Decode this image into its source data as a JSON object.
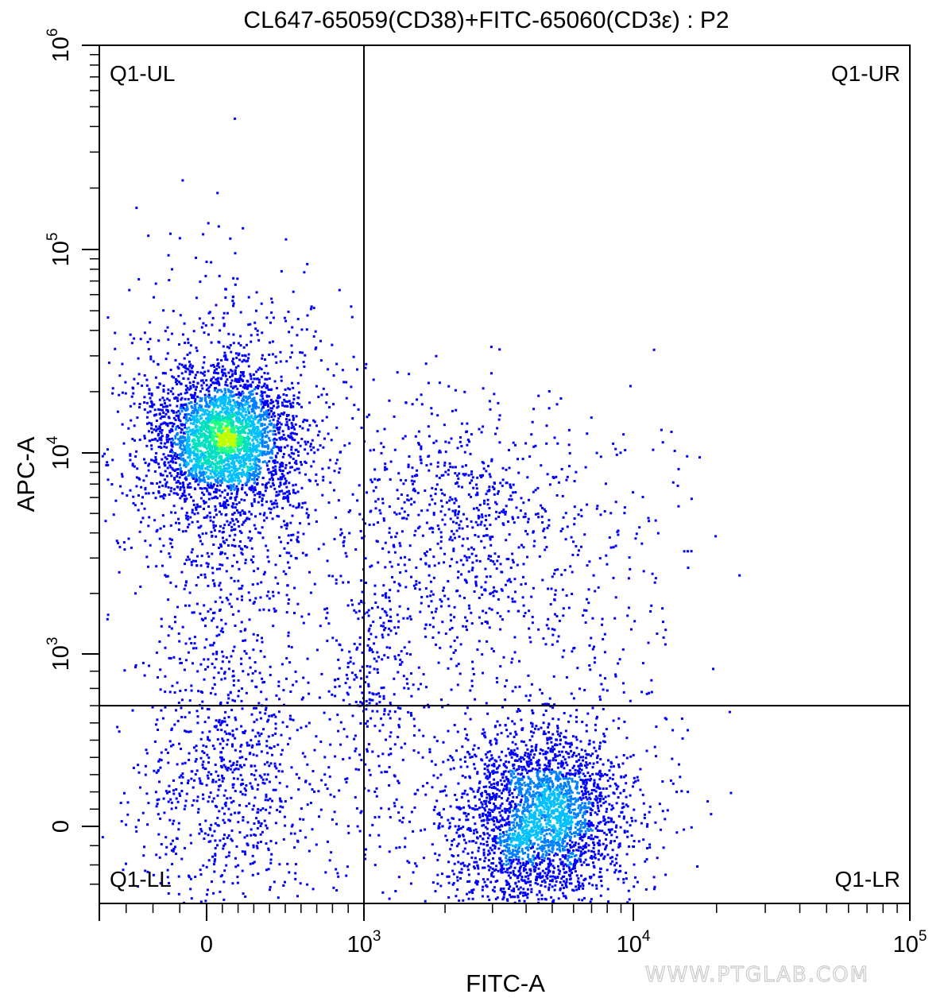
{
  "chart_data": {
    "type": "scatter",
    "subtype": "flow-cytometry-density-dot-plot",
    "title": "CL647-65059(CD38)+FITC-65060(CD3ε) : P2",
    "xlabel": "FITC-A",
    "ylabel": "APC-A",
    "x_scale": "biexponential",
    "y_scale": "biexponential",
    "xlim": [
      -400,
      100000
    ],
    "ylim": [
      -400,
      1000000
    ],
    "x_ticks": [
      {
        "base": "0",
        "exp": ""
      },
      {
        "base": "10",
        "exp": "3"
      },
      {
        "base": "10",
        "exp": "4"
      },
      {
        "base": "10",
        "exp": "5"
      }
    ],
    "y_ticks": [
      {
        "base": "0",
        "exp": ""
      },
      {
        "base": "10",
        "exp": "3"
      },
      {
        "base": "10",
        "exp": "4"
      },
      {
        "base": "10",
        "exp": "5"
      },
      {
        "base": "10",
        "exp": "6"
      }
    ],
    "gates": {
      "x_threshold": 1000,
      "y_threshold": 700
    },
    "quadrants": {
      "ul": "Q1-UL",
      "ur": "Q1-UR",
      "ll": "Q1-LL",
      "lr": "Q1-LR"
    },
    "populations": [
      {
        "region": "Q1-UL",
        "x_center": 100,
        "y_center": 12000,
        "density": "high"
      },
      {
        "region": "Q1-LR",
        "x_center": 4500,
        "y_center": 50,
        "density": "high"
      },
      {
        "region": "Q1-UR",
        "x_center": 3000,
        "y_center": 3000,
        "density": "low"
      },
      {
        "region": "Q1-LL",
        "x_center": 150,
        "y_center": 200,
        "density": "low"
      }
    ],
    "colormap": [
      "#0000ff",
      "#0080ff",
      "#00c0ff",
      "#00e0c0",
      "#20ff80",
      "#c0ff00"
    ],
    "grid": false,
    "legend": "none"
  },
  "watermark": "WWW.PTGLAB.COM"
}
